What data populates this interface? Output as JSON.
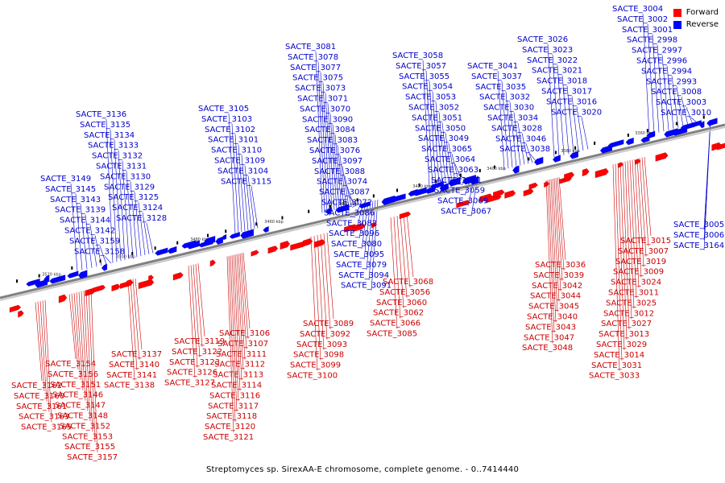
{
  "caption": "Streptomyces sp. SirexAA-E chromosome, complete genome. - 0..7414440",
  "legend": {
    "forward_label": "Forward",
    "reverse_label": "Reverse",
    "forward_color": "#ff0000",
    "reverse_color": "#0000ff"
  },
  "colors": {
    "label_forward": "#cc0000",
    "label_reverse": "#0000cc",
    "axis": "#808080"
  },
  "axis": {
    "ticks": [
      "3360 kbp",
      "3380 kbp",
      "3400 kbp",
      "3420 kbp",
      "3440 kbp",
      "3460 kbp",
      "3480 kbp",
      "3500 kbp",
      "3520 kbp"
    ]
  },
  "labels_reverse": [
    "SACTE_3004",
    "SACTE_3002",
    "SACTE_3001",
    "SACTE_2998",
    "SACTE_2997",
    "SACTE_2996",
    "SACTE_2994",
    "SACTE_2993",
    "SACTE_3008",
    "SACTE_3003",
    "SACTE_3010",
    "SACTE_3026",
    "SACTE_3023",
    "SACTE_3022",
    "SACTE_3021",
    "SACTE_3018",
    "SACTE_3017",
    "SACTE_3016",
    "SACTE_3020",
    "SACTE_3041",
    "SACTE_3037",
    "SACTE_3035",
    "SACTE_3032",
    "SACTE_3030",
    "SACTE_3034",
    "SACTE_3028",
    "SACTE_3046",
    "SACTE_3038",
    "SACTE_3058",
    "SACTE_3057",
    "SACTE_3055",
    "SACTE_3054",
    "SACTE_3053",
    "SACTE_3052",
    "SACTE_3051",
    "SACTE_3050",
    "SACTE_3049",
    "SACTE_3065",
    "SACTE_3064",
    "SACTE_3063",
    "SACTE_3061",
    "SACTE_3059",
    "SACTE_3069",
    "SACTE_3067",
    "SACTE_3081",
    "SACTE_3078",
    "SACTE_3077",
    "SACTE_3075",
    "SACTE_3073",
    "SACTE_3071",
    "SACTE_3070",
    "SACTE_3090",
    "SACTE_3084",
    "SACTE_3083",
    "SACTE_3076",
    "SACTE_3097",
    "SACTE_3088",
    "SACTE_3074",
    "SACTE_3087",
    "SACTE_3072",
    "SACTE_3086",
    "SACTE_3082",
    "SACTE_3096",
    "SACTE_3080",
    "SACTE_3095",
    "SACTE_3079",
    "SACTE_3094",
    "SACTE_3091",
    "SACTE_3105",
    "SACTE_3103",
    "SACTE_3102",
    "SACTE_3101",
    "SACTE_3110",
    "SACTE_3109",
    "SACTE_3104",
    "SACTE_3115",
    "SACTE_3136",
    "SACTE_3135",
    "SACTE_3134",
    "SACTE_3133",
    "SACTE_3132",
    "SACTE_3131",
    "SACTE_3130",
    "SACTE_3129",
    "SACTE_3125",
    "SACTE_3124",
    "SACTE_3128",
    "SACTE_3149",
    "SACTE_3145",
    "SACTE_3143",
    "SACTE_3139",
    "SACTE_3144",
    "SACTE_3142",
    "SACTE_3159",
    "SACTE_3158",
    "SACTE_3005",
    "SACTE_3006",
    "SACTE_3164"
  ],
  "labels_forward": [
    "SACTE_3015",
    "SACTE_3007",
    "SACTE_3019",
    "SACTE_3009",
    "SACTE_3024",
    "SACTE_3011",
    "SACTE_3025",
    "SACTE_3012",
    "SACTE_3027",
    "SACTE_3013",
    "SACTE_3029",
    "SACTE_3014",
    "SACTE_3031",
    "SACTE_3033",
    "SACTE_3036",
    "SACTE_3039",
    "SACTE_3042",
    "SACTE_3044",
    "SACTE_3045",
    "SACTE_3040",
    "SACTE_3043",
    "SACTE_3047",
    "SACTE_3048",
    "SACTE_3068",
    "SACTE_3056",
    "SACTE_3060",
    "SACTE_3062",
    "SACTE_3066",
    "SACTE_3085",
    "SACTE_3089",
    "SACTE_3092",
    "SACTE_3093",
    "SACTE_3098",
    "SACTE_3099",
    "SACTE_3100",
    "SACTE_3106",
    "SACTE_3107",
    "SACTE_3111",
    "SACTE_3112",
    "SACTE_3113",
    "SACTE_3114",
    "SACTE_3116",
    "SACTE_3117",
    "SACTE_3118",
    "SACTE_3120",
    "SACTE_3121",
    "SACTE_3119",
    "SACTE_3122",
    "SACTE_3123",
    "SACTE_3126",
    "SACTE_3127",
    "SACTE_3137",
    "SACTE_3140",
    "SACTE_3141",
    "SACTE_3138",
    "SACTE_3154",
    "SACTE_3156",
    "SACTE_3151",
    "SACTE_3146",
    "SACTE_3147",
    "SACTE_3148",
    "SACTE_3152",
    "SACTE_3153",
    "SACTE_3155",
    "SACTE_3157",
    "SACTE_3162",
    "SACTE_3160",
    "SACTE_3161",
    "SACTE_3163",
    "SACTE_3165"
  ]
}
